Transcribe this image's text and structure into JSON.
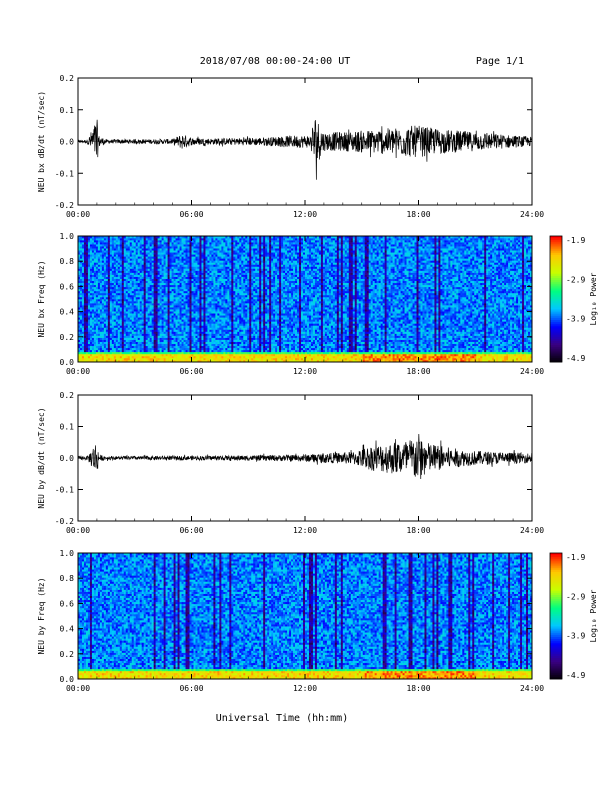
{
  "header": {
    "title": "2018/07/08  00:00-24:00 UT",
    "page": "Page 1/1"
  },
  "xlabel": "Universal Time (hh:mm)",
  "colors": {
    "trace": "#000000",
    "colormap": [
      "#000000",
      "#3a0080",
      "#0000ff",
      "#00c8ff",
      "#00ff80",
      "#c8ff00",
      "#ffc800",
      "#ff0000"
    ]
  },
  "chart_data": [
    {
      "type": "line",
      "ylabel": "NEU bx dB/dt (nT/sec)",
      "xlim": [
        0,
        24
      ],
      "xticks": [
        "00:00",
        "06:00",
        "12:00",
        "18:00",
        "24:00"
      ],
      "ylim": [
        -0.2,
        0.2
      ],
      "yticks": [
        "0.2",
        "0.1",
        "0.0",
        "-0.1",
        "-0.2"
      ],
      "amplitude_envelope": {
        "hours": [
          0,
          0.5,
          1.0,
          1.1,
          1.5,
          3,
          5,
          5.5,
          6,
          7,
          9,
          10.5,
          11.5,
          12.3,
          12.5,
          13,
          14,
          15,
          16,
          17,
          17.5,
          18,
          19,
          20,
          21,
          22,
          23,
          24
        ],
        "amp": [
          0.005,
          0.006,
          0.075,
          0.02,
          0.006,
          0.007,
          0.008,
          0.025,
          0.012,
          0.01,
          0.012,
          0.015,
          0.02,
          0.02,
          0.09,
          0.03,
          0.03,
          0.035,
          0.04,
          0.045,
          0.05,
          0.05,
          0.04,
          0.035,
          0.03,
          0.025,
          0.02,
          0.015
        ]
      }
    },
    {
      "type": "heatmap",
      "ylabel": "NEU bx Freq (Hz)",
      "xlim": [
        0,
        24
      ],
      "xticks": [
        "00:00",
        "06:00",
        "12:00",
        "18:00",
        "24:00"
      ],
      "ylim": [
        0.0,
        1.0
      ],
      "yticks": [
        "1.0",
        "0.8",
        "0.6",
        "0.4",
        "0.2",
        "0.0"
      ],
      "colorbar": {
        "label": "Log₁₀ Power",
        "ticks": [
          "-1.9",
          "-2.9",
          "-3.9",
          "-4.9"
        ],
        "range": [
          -4.9,
          -1.9
        ]
      }
    },
    {
      "type": "line",
      "ylabel": "NEU by dB/dt (nT/sec)",
      "xlim": [
        0,
        24
      ],
      "xticks": [
        "00:00",
        "06:00",
        "12:00",
        "18:00",
        "24:00"
      ],
      "ylim": [
        -0.2,
        0.2
      ],
      "yticks": [
        "0.2",
        "0.1",
        "0.0",
        "-0.1",
        "-0.2"
      ],
      "amplitude_envelope": {
        "hours": [
          0,
          0.5,
          1.0,
          1.1,
          1.5,
          3,
          6,
          9,
          11,
          12,
          13,
          14.5,
          15.5,
          16.5,
          17.5,
          18,
          18.5,
          19.5,
          20.5,
          22,
          24
        ],
        "amp": [
          0.006,
          0.006,
          0.06,
          0.01,
          0.006,
          0.006,
          0.007,
          0.008,
          0.01,
          0.012,
          0.015,
          0.02,
          0.04,
          0.05,
          0.06,
          0.08,
          0.05,
          0.035,
          0.025,
          0.02,
          0.015
        ]
      }
    },
    {
      "type": "heatmap",
      "ylabel": "NEU by Freq (Hz)",
      "xlim": [
        0,
        24
      ],
      "xticks": [
        "00:00",
        "06:00",
        "12:00",
        "18:00",
        "24:00"
      ],
      "ylim": [
        0.0,
        1.0
      ],
      "yticks": [
        "1.0",
        "0.8",
        "0.6",
        "0.4",
        "0.2",
        "0.0"
      ],
      "colorbar": {
        "label": "Log₁₀ Power",
        "ticks": [
          "-1.9",
          "-2.9",
          "-3.9",
          "-4.9"
        ],
        "range": [
          -4.9,
          -1.9
        ]
      }
    }
  ]
}
